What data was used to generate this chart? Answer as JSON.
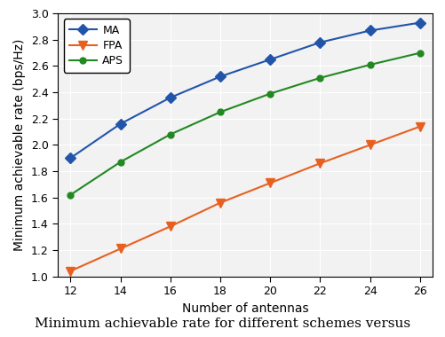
{
  "x": [
    12,
    14,
    16,
    18,
    20,
    22,
    24,
    26
  ],
  "MA": [
    1.9,
    2.16,
    2.36,
    2.52,
    2.65,
    2.78,
    2.87,
    2.93
  ],
  "FPA": [
    1.04,
    1.21,
    1.38,
    1.56,
    1.71,
    1.86,
    2.0,
    2.14
  ],
  "APS": [
    1.62,
    1.87,
    2.08,
    2.25,
    2.39,
    2.51,
    2.61,
    2.7
  ],
  "MA_color": "#2255aa",
  "FPA_color": "#e86020",
  "APS_color": "#228822",
  "xlabel": "Number of antennas",
  "ylabel": "Minimum achievable rate (bps/Hz)",
  "caption": "Minimum achievable rate for different schemes versus",
  "xlim": [
    11.5,
    26.5
  ],
  "ylim": [
    1.0,
    3.0
  ],
  "yticks": [
    1.0,
    1.2,
    1.4,
    1.6,
    1.8,
    2.0,
    2.2,
    2.4,
    2.6,
    2.8,
    3.0
  ],
  "xticks": [
    12,
    14,
    16,
    18,
    20,
    22,
    24,
    26
  ],
  "legend_labels": [
    "MA",
    "FPA",
    "APS"
  ],
  "axes_bg": "#f2f2f2",
  "grid_color": "#ffffff",
  "background_color": "#ffffff"
}
